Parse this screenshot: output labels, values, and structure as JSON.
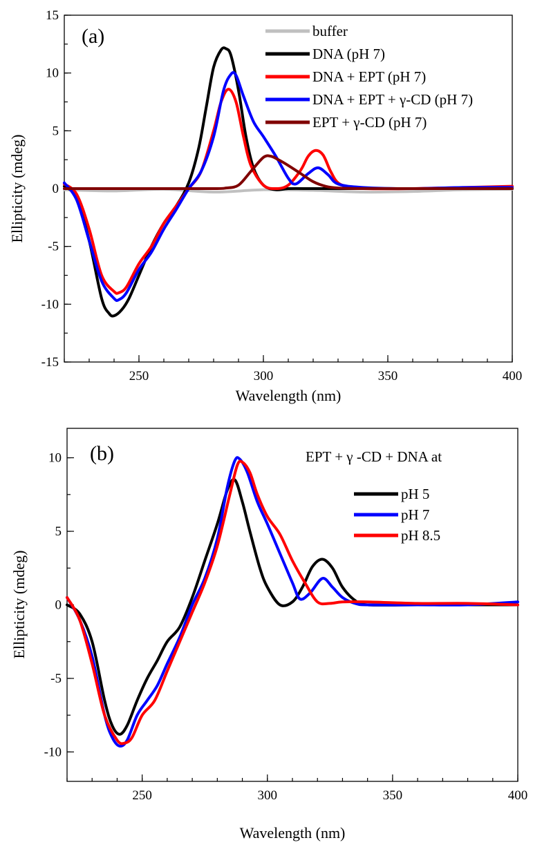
{
  "chart_data": [
    {
      "type": "line",
      "panel_label": "(a)",
      "xlabel": "Wavelength (nm)",
      "ylabel": "Ellipticity (mdeg)",
      "xlim": [
        220,
        400
      ],
      "ylim": [
        -15,
        15
      ],
      "x_ticks": [
        250,
        300,
        350,
        400
      ],
      "y_ticks": [
        -15,
        -10,
        -5,
        0,
        5,
        10,
        15
      ],
      "x_tick_labels": [
        "250",
        "300",
        "350",
        "400"
      ],
      "y_tick_labels": [
        "-15",
        "-10",
        "-5",
        "0",
        "5",
        "10",
        "15"
      ],
      "legend_position": "top-right",
      "series": [
        {
          "name": "buffer",
          "color": "#c0c0c0",
          "x": [
            220,
            240,
            260,
            280,
            300,
            320,
            340,
            360,
            380,
            400
          ],
          "y": [
            -0.1,
            -0.2,
            -0.05,
            -0.3,
            -0.1,
            -0.15,
            -0.3,
            -0.25,
            -0.1,
            -0.05
          ]
        },
        {
          "name": "DNA (pH 7)",
          "color": "#000000",
          "x": [
            220,
            225,
            230,
            235,
            238,
            240,
            243,
            246,
            250,
            255,
            260,
            265,
            270,
            274,
            277,
            280,
            283,
            285,
            287,
            290,
            293,
            296,
            300,
            305,
            310,
            320,
            330,
            340,
            360,
            380,
            400
          ],
          "y": [
            0.2,
            -0.8,
            -4.5,
            -9.5,
            -10.8,
            -11,
            -10.5,
            -9.5,
            -7.5,
            -5,
            -3,
            -1.5,
            0.5,
            3.5,
            7,
            10.5,
            12,
            12.1,
            11.5,
            8.5,
            4.5,
            1.8,
            0.3,
            -0.1,
            0,
            0,
            0,
            0,
            0,
            0,
            0
          ]
        },
        {
          "name": "DNA + EPT (pH 7)",
          "color": "#ff0000",
          "x": [
            220,
            225,
            230,
            235,
            240,
            242,
            245,
            250,
            255,
            260,
            265,
            270,
            275,
            280,
            283,
            286,
            289,
            292,
            295,
            300,
            305,
            310,
            315,
            318,
            321,
            324,
            327,
            330,
            335,
            340,
            360,
            380,
            400
          ],
          "y": [
            0.4,
            -0.5,
            -3.5,
            -7.5,
            -8.9,
            -9,
            -8.5,
            -6.5,
            -5,
            -3,
            -1.5,
            0,
            1.5,
            5,
            7.5,
            8.6,
            7.5,
            4.5,
            2,
            0.3,
            0,
            0.3,
            1.6,
            2.8,
            3.3,
            2.9,
            1.5,
            0.5,
            0.1,
            0,
            0,
            0.1,
            0.2
          ]
        },
        {
          "name": "DNA + EPT + γ-CD (pH 7)",
          "color": "#0000ff",
          "x": [
            220,
            225,
            230,
            235,
            240,
            242,
            245,
            250,
            255,
            260,
            265,
            270,
            275,
            280,
            284,
            287,
            289,
            292,
            296,
            300,
            305,
            310,
            313,
            318,
            322,
            326,
            330,
            340,
            360,
            380,
            400
          ],
          "y": [
            0.5,
            -1,
            -4.5,
            -8,
            -9.5,
            -9.6,
            -9,
            -7,
            -5.5,
            -3.5,
            -1.8,
            0,
            1.5,
            4.5,
            8.5,
            9.9,
            9.8,
            8,
            5.8,
            4.5,
            2.8,
            0.9,
            0.4,
            1.3,
            1.8,
            1.2,
            0.4,
            0.1,
            0,
            0.1,
            0.1
          ]
        },
        {
          "name": "EPT + γ-CD (pH 7)",
          "color": "#800000",
          "x": [
            220,
            240,
            260,
            280,
            285,
            290,
            295,
            300,
            303,
            306,
            310,
            315,
            320,
            325,
            330,
            340,
            360,
            380,
            400
          ],
          "y": [
            0,
            0,
            0,
            0,
            0.05,
            0.3,
            1.5,
            2.7,
            2.8,
            2.5,
            2,
            1.3,
            0.6,
            0.2,
            0.05,
            0,
            0,
            0,
            0
          ]
        }
      ]
    },
    {
      "type": "line",
      "panel_label": "(b)",
      "legend_title": "EPT + γ -CD + DNA at",
      "xlabel": "Wavelength (nm)",
      "ylabel": "Ellipticity (mdeg)",
      "xlim": [
        220,
        400
      ],
      "ylim": [
        -12,
        12
      ],
      "x_ticks": [
        250,
        300,
        350,
        400
      ],
      "y_ticks": [
        -10,
        -5,
        0,
        5,
        10
      ],
      "x_tick_labels": [
        "250",
        "300",
        "350",
        "400"
      ],
      "y_tick_labels": [
        "-10",
        "-5",
        "0",
        "5",
        "10"
      ],
      "legend_position": "top-right",
      "series": [
        {
          "name": "pH 5",
          "color": "#000000",
          "x": [
            220,
            225,
            230,
            235,
            238,
            241,
            244,
            248,
            252,
            256,
            260,
            265,
            270,
            275,
            280,
            284,
            287,
            290,
            293,
            297,
            300,
            305,
            310,
            314,
            318,
            322,
            326,
            330,
            335,
            340,
            360,
            380,
            400
          ],
          "y": [
            0,
            -0.6,
            -2.5,
            -6.5,
            -8.2,
            -8.8,
            -8.2,
            -6.5,
            -5,
            -3.8,
            -2.5,
            -1.5,
            0.5,
            3,
            5.5,
            7.8,
            8.5,
            7,
            5,
            2.5,
            1.2,
            0,
            0.2,
            1.2,
            2.6,
            3.1,
            2.5,
            1.2,
            0.3,
            0,
            0,
            0,
            0
          ]
        },
        {
          "name": "pH 7",
          "color": "#0000ff",
          "x": [
            220,
            225,
            230,
            235,
            238,
            241,
            244,
            248,
            252,
            256,
            260,
            265,
            270,
            275,
            280,
            284,
            287,
            289,
            292,
            296,
            300,
            305,
            310,
            313,
            317,
            322,
            326,
            330,
            335,
            340,
            360,
            380,
            400
          ],
          "y": [
            0.5,
            -1,
            -3.5,
            -7.5,
            -9,
            -9.6,
            -9.2,
            -7.5,
            -6.5,
            -5.5,
            -4,
            -2.2,
            0,
            1.8,
            4.5,
            8,
            9.8,
            9.9,
            9,
            7,
            5.5,
            3.5,
            1.5,
            0.4,
            0.8,
            1.8,
            1.2,
            0.5,
            0.1,
            0,
            0,
            0,
            0.2
          ]
        },
        {
          "name": "pH 8.5",
          "color": "#ff0000",
          "x": [
            220,
            225,
            230,
            235,
            240,
            243,
            246,
            250,
            255,
            260,
            265,
            270,
            275,
            280,
            285,
            288,
            290,
            293,
            296,
            300,
            305,
            310,
            315,
            320,
            325,
            330,
            340,
            360,
            380,
            400
          ],
          "y": [
            0.5,
            -1,
            -4,
            -7.5,
            -9.2,
            -9.4,
            -9,
            -7.5,
            -6.5,
            -4.5,
            -2.5,
            -0.5,
            1.5,
            4,
            7.5,
            9.5,
            9.7,
            9,
            7.5,
            6,
            4.8,
            3,
            1.5,
            0.2,
            0.1,
            0.2,
            0.2,
            0.1,
            0.1,
            0
          ]
        }
      ]
    }
  ]
}
